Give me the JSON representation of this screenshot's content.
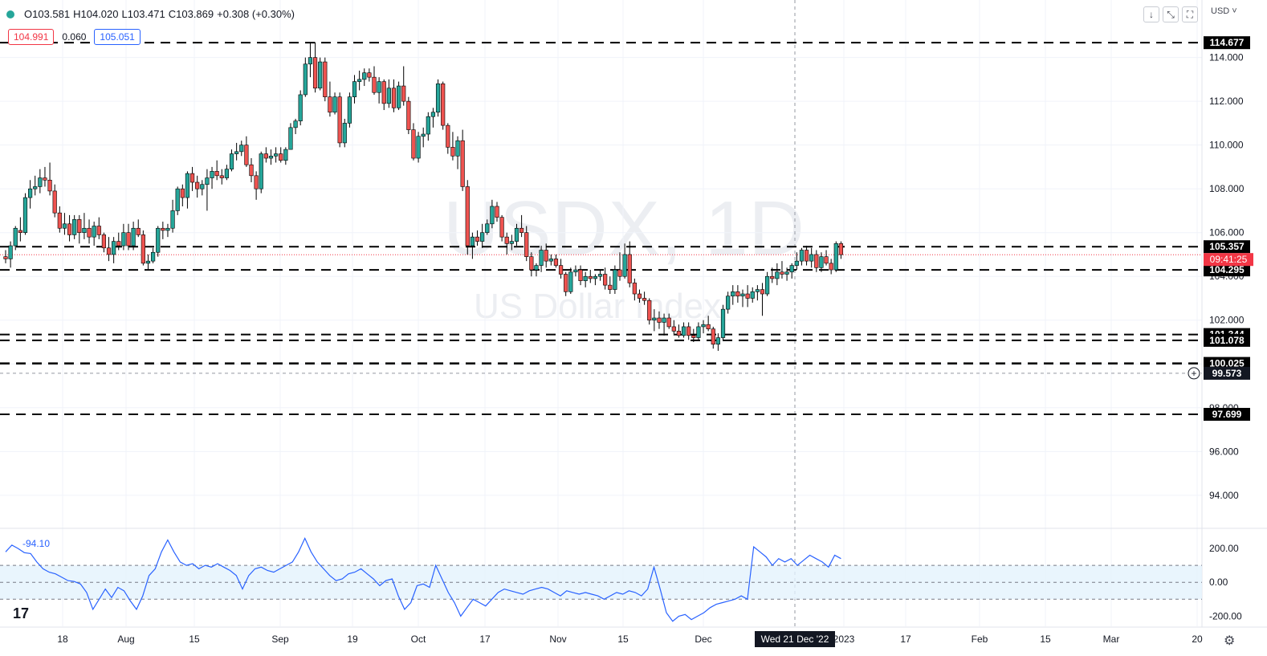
{
  "header": {
    "open": "O103.581",
    "high": "H104.020",
    "low": "L103.471",
    "close": "C103.869",
    "change": "+0.308 (+0.30%)",
    "sell_price": "104.991",
    "spread": "0.060",
    "buy_price": "105.051",
    "currency": "USD"
  },
  "watermark": {
    "symbol": "USDX, 1D",
    "name": "US Dollar Index"
  },
  "icons": [
    "arrow-down-icon",
    "collapse-icon",
    "fullscreen-icon",
    "settings-icon"
  ],
  "colors": {
    "up": "#26a69a",
    "down": "#ef5350",
    "level": "#000000",
    "cci": "#2962ff",
    "last_price": "#f23645"
  },
  "crosshair": {
    "label": "Wed 21 Dec '22"
  },
  "last_price": {
    "countdown": "09:41:25"
  },
  "chart_data": [
    {
      "type": "candlestick",
      "symbol": "USDX",
      "timeframe": "1D",
      "y_ticks": [
        94,
        96,
        98,
        100,
        102,
        104,
        106,
        108,
        110,
        112,
        114
      ],
      "y_tick_labels": [
        "94.000",
        "96.000",
        "98.000",
        "100.000",
        "102.000",
        "104.000",
        "106.000",
        "108.000",
        "110.000",
        "112.000",
        "114.000"
      ],
      "ylim": [
        92.6,
        115.6
      ],
      "x_tick_labels": [
        "18",
        "Aug",
        "15",
        "Sep",
        "19",
        "Oct",
        "17",
        "Nov",
        "15",
        "Dec",
        "2023",
        "17",
        "Feb",
        "15",
        "Mar",
        "20"
      ],
      "horizontal_levels": [
        114.677,
        105.357,
        104.295,
        101.344,
        101.078,
        100.025,
        97.699
      ],
      "horizontal_level_labels": [
        "114.677",
        "105.357",
        "104.295",
        "101.344",
        "101.078",
        "100.025",
        "97.699"
      ],
      "crosshair_price": 99.573,
      "crosshair_price_label": "99.573",
      "last_price": 104.991,
      "last_price_label": "104.991",
      "candles": [
        [
          104.9,
          105.2,
          104.6,
          104.8
        ],
        [
          104.8,
          105.6,
          104.4,
          105.4
        ],
        [
          105.4,
          106.3,
          105.2,
          106.2
        ],
        [
          106.1,
          106.7,
          105.6,
          106.0
        ],
        [
          106.0,
          107.8,
          105.9,
          107.6
        ],
        [
          107.6,
          108.4,
          107.1,
          108.0
        ],
        [
          108.0,
          108.6,
          107.7,
          108.1
        ],
        [
          108.1,
          108.9,
          107.8,
          108.5
        ],
        [
          108.5,
          109.0,
          108.1,
          108.4
        ],
        [
          108.4,
          109.2,
          107.7,
          107.9
        ],
        [
          107.9,
          108.2,
          106.7,
          106.9
        ],
        [
          106.9,
          107.2,
          106.0,
          106.2
        ],
        [
          106.2,
          106.9,
          105.9,
          106.4
        ],
        [
          106.4,
          106.8,
          105.6,
          105.9
        ],
        [
          105.9,
          106.8,
          105.7,
          106.6
        ],
        [
          106.6,
          106.8,
          105.5,
          106.0
        ],
        [
          106.0,
          106.9,
          105.7,
          106.2
        ],
        [
          106.2,
          106.6,
          105.5,
          105.8
        ],
        [
          105.8,
          106.5,
          105.4,
          106.3
        ],
        [
          106.3,
          106.7,
          105.7,
          105.9
        ],
        [
          105.9,
          106.0,
          105.1,
          105.3
        ],
        [
          105.3,
          105.8,
          104.7,
          105.0
        ],
        [
          105.0,
          105.8,
          104.6,
          105.6
        ],
        [
          105.6,
          106.0,
          105.2,
          105.4
        ],
        [
          105.4,
          106.4,
          105.2,
          106.0
        ],
        [
          106.0,
          106.4,
          105.2,
          105.4
        ],
        [
          105.4,
          106.5,
          105.2,
          106.2
        ],
        [
          106.2,
          106.6,
          105.8,
          105.9
        ],
        [
          105.9,
          106.1,
          104.5,
          104.6
        ],
        [
          104.6,
          105.0,
          104.3,
          104.7
        ],
        [
          104.7,
          105.3,
          104.6,
          105.1
        ],
        [
          105.1,
          106.3,
          104.9,
          106.2
        ],
        [
          106.2,
          106.5,
          105.7,
          106.1
        ],
        [
          106.1,
          106.4,
          105.8,
          106.2
        ],
        [
          106.2,
          107.5,
          106.0,
          107.0
        ],
        [
          107.0,
          108.1,
          106.8,
          108.0
        ],
        [
          108.0,
          108.2,
          107.2,
          107.6
        ],
        [
          107.6,
          108.8,
          107.1,
          108.7
        ],
        [
          108.7,
          109.0,
          107.9,
          108.3
        ],
        [
          108.3,
          108.6,
          107.6,
          108.0
        ],
        [
          108.0,
          108.4,
          107.7,
          108.2
        ],
        [
          108.2,
          108.9,
          107.0,
          108.5
        ],
        [
          108.5,
          109.0,
          108.0,
          108.8
        ],
        [
          108.8,
          109.3,
          108.4,
          108.6
        ],
        [
          108.6,
          108.9,
          108.2,
          108.5
        ],
        [
          108.5,
          109.1,
          108.4,
          108.9
        ],
        [
          108.9,
          109.8,
          108.8,
          109.6
        ],
        [
          109.6,
          110.1,
          109.3,
          109.7
        ],
        [
          109.7,
          110.2,
          109.5,
          110.0
        ],
        [
          110.0,
          110.4,
          109.0,
          109.1
        ],
        [
          109.1,
          109.4,
          108.3,
          108.6
        ],
        [
          108.6,
          108.8,
          107.5,
          108.0
        ],
        [
          108.0,
          109.7,
          107.8,
          109.6
        ],
        [
          109.6,
          109.9,
          109.2,
          109.4
        ],
        [
          109.4,
          109.8,
          109.1,
          109.5
        ],
        [
          109.5,
          109.9,
          109.2,
          109.6
        ],
        [
          109.6,
          109.9,
          109.2,
          109.3
        ],
        [
          109.3,
          109.9,
          109.1,
          109.8
        ],
        [
          109.8,
          111.0,
          109.8,
          110.8
        ],
        [
          110.8,
          111.2,
          110.5,
          111.1
        ],
        [
          111.1,
          112.5,
          110.9,
          112.3
        ],
        [
          112.3,
          114.0,
          112.2,
          113.7
        ],
        [
          113.7,
          114.7,
          113.1,
          114.0
        ],
        [
          114.0,
          114.7,
          112.4,
          112.6
        ],
        [
          112.6,
          114.0,
          112.5,
          113.8
        ],
        [
          113.8,
          114.0,
          112.0,
          112.2
        ],
        [
          112.2,
          112.9,
          111.3,
          111.5
        ],
        [
          111.5,
          112.4,
          111.4,
          112.2
        ],
        [
          112.2,
          112.4,
          109.9,
          110.1
        ],
        [
          110.1,
          111.2,
          109.9,
          111.0
        ],
        [
          111.0,
          112.4,
          110.8,
          112.2
        ],
        [
          112.2,
          113.2,
          111.9,
          112.9
        ],
        [
          112.9,
          113.4,
          112.5,
          113.0
        ],
        [
          113.0,
          113.5,
          112.7,
          113.3
        ],
        [
          113.3,
          113.5,
          112.9,
          113.1
        ],
        [
          113.1,
          113.6,
          112.3,
          112.4
        ],
        [
          112.4,
          113.1,
          111.9,
          112.9
        ],
        [
          112.9,
          113.0,
          111.6,
          111.9
        ],
        [
          111.9,
          113.0,
          111.7,
          112.6
        ],
        [
          112.6,
          113.0,
          111.5,
          111.7
        ],
        [
          111.7,
          112.9,
          111.6,
          112.7
        ],
        [
          112.7,
          113.6,
          111.8,
          112.0
        ],
        [
          112.0,
          112.2,
          110.5,
          110.7
        ],
        [
          110.7,
          111.0,
          109.3,
          109.4
        ],
        [
          109.4,
          110.6,
          109.2,
          110.4
        ],
        [
          110.4,
          110.8,
          109.9,
          110.5
        ],
        [
          110.5,
          111.5,
          110.2,
          111.3
        ],
        [
          111.3,
          111.7,
          110.8,
          111.5
        ],
        [
          111.5,
          113.0,
          111.3,
          112.8
        ],
        [
          112.8,
          112.9,
          110.7,
          110.9
        ],
        [
          110.9,
          111.0,
          109.6,
          109.9
        ],
        [
          109.9,
          110.6,
          109.3,
          109.5
        ],
        [
          109.5,
          110.4,
          108.9,
          110.2
        ],
        [
          110.2,
          110.7,
          107.9,
          108.1
        ],
        [
          108.1,
          108.4,
          105.0,
          105.4
        ],
        [
          105.4,
          106.0,
          104.8,
          105.8
        ],
        [
          105.8,
          106.1,
          105.4,
          105.6
        ],
        [
          105.6,
          106.4,
          105.3,
          106.0
        ],
        [
          106.0,
          106.6,
          105.9,
          106.4
        ],
        [
          106.4,
          107.5,
          106.2,
          107.2
        ],
        [
          107.2,
          107.4,
          106.5,
          106.7
        ],
        [
          106.7,
          106.8,
          105.6,
          105.8
        ],
        [
          105.8,
          106.0,
          105.0,
          105.5
        ],
        [
          105.5,
          105.9,
          105.2,
          105.6
        ],
        [
          105.6,
          106.4,
          105.4,
          106.2
        ],
        [
          106.2,
          106.8,
          105.8,
          106.0
        ],
        [
          106.0,
          106.3,
          104.7,
          104.9
        ],
        [
          104.9,
          105.1,
          104.0,
          104.3
        ],
        [
          104.3,
          104.6,
          104.0,
          104.5
        ],
        [
          104.5,
          105.4,
          104.2,
          105.2
        ],
        [
          105.2,
          105.5,
          104.4,
          104.7
        ],
        [
          104.7,
          105.0,
          104.5,
          104.8
        ],
        [
          104.8,
          105.0,
          104.4,
          104.5
        ],
        [
          104.5,
          104.8,
          103.9,
          104.1
        ],
        [
          104.1,
          104.2,
          103.1,
          103.3
        ],
        [
          103.3,
          104.4,
          103.2,
          104.2
        ],
        [
          104.2,
          104.5,
          104.0,
          104.3
        ],
        [
          104.3,
          104.5,
          103.6,
          103.8
        ],
        [
          103.8,
          104.2,
          103.5,
          104.0
        ],
        [
          104.0,
          104.3,
          103.7,
          103.9
        ],
        [
          103.9,
          104.1,
          103.6,
          104.0
        ],
        [
          104.0,
          104.3,
          103.8,
          104.1
        ],
        [
          104.1,
          104.4,
          103.4,
          103.6
        ],
        [
          103.6,
          104.0,
          103.2,
          103.4
        ],
        [
          103.4,
          104.5,
          103.2,
          104.3
        ],
        [
          104.3,
          105.1,
          103.8,
          104.0
        ],
        [
          104.0,
          105.5,
          103.9,
          105.0
        ],
        [
          105.0,
          105.6,
          103.5,
          103.7
        ],
        [
          103.7,
          103.9,
          102.9,
          103.2
        ],
        [
          103.2,
          103.4,
          102.8,
          103.0
        ],
        [
          103.0,
          103.3,
          102.7,
          102.9
        ],
        [
          102.9,
          103.0,
          101.8,
          102.0
        ],
        [
          102.0,
          102.5,
          101.5,
          102.1
        ],
        [
          102.1,
          102.4,
          101.6,
          101.9
        ],
        [
          101.9,
          102.3,
          101.3,
          102.1
        ],
        [
          102.1,
          102.3,
          101.6,
          101.7
        ],
        [
          101.7,
          102.0,
          101.3,
          101.5
        ],
        [
          101.5,
          101.8,
          101.2,
          101.3
        ],
        [
          101.3,
          101.9,
          101.2,
          101.7
        ],
        [
          101.7,
          101.9,
          101.1,
          101.3
        ],
        [
          101.3,
          101.6,
          101.0,
          101.2
        ],
        [
          101.2,
          101.9,
          101.1,
          101.7
        ],
        [
          101.7,
          102.0,
          101.4,
          101.8
        ],
        [
          101.8,
          102.2,
          101.5,
          101.6
        ],
        [
          101.6,
          101.7,
          100.7,
          100.9
        ],
        [
          100.9,
          101.4,
          100.6,
          101.2
        ],
        [
          101.2,
          102.7,
          101.1,
          102.5
        ],
        [
          102.5,
          103.3,
          102.3,
          103.1
        ],
        [
          103.1,
          103.6,
          102.7,
          103.3
        ],
        [
          103.3,
          103.6,
          102.8,
          103.1
        ],
        [
          103.1,
          103.4,
          102.6,
          103.2
        ],
        [
          103.2,
          103.6,
          102.6,
          103.0
        ],
        [
          103.0,
          103.5,
          102.8,
          103.3
        ],
        [
          103.3,
          103.6,
          102.9,
          103.4
        ],
        [
          103.4,
          103.7,
          102.2,
          103.2
        ],
        [
          103.2,
          104.2,
          103.1,
          104.0
        ],
        [
          104.0,
          104.4,
          103.7,
          103.9
        ],
        [
          103.9,
          104.6,
          103.6,
          104.2
        ],
        [
          104.2,
          104.7,
          103.9,
          104.1
        ],
        [
          104.1,
          104.4,
          103.8,
          104.2
        ],
        [
          104.2,
          104.6,
          103.9,
          104.5
        ],
        [
          104.5,
          105.1,
          104.3,
          104.7
        ],
        [
          104.7,
          105.3,
          104.5,
          105.2
        ],
        [
          105.2,
          105.4,
          104.5,
          104.7
        ],
        [
          104.7,
          105.3,
          104.4,
          105.0
        ],
        [
          105.0,
          105.2,
          104.2,
          104.4
        ],
        [
          104.4,
          105.1,
          104.2,
          104.9
        ],
        [
          104.9,
          105.2,
          104.5,
          104.6
        ],
        [
          104.6,
          104.8,
          104.1,
          104.3
        ],
        [
          104.3,
          105.6,
          104.2,
          105.5
        ],
        [
          105.5,
          105.6,
          104.8,
          104.991
        ]
      ],
      "candle_step_px": 6.12,
      "cci_series": {
        "ylim": [
          -260,
          300
        ],
        "y_ticks": [
          -200,
          0,
          200
        ],
        "y_tick_labels": [
          "-200.00",
          "0.00",
          "200.00"
        ],
        "band": [
          -100,
          100
        ],
        "label": "-94.10",
        "values": [
          180,
          220,
          200,
          175,
          170,
          120,
          80,
          60,
          50,
          30,
          10,
          5,
          -10,
          -60,
          -160,
          -100,
          -40,
          -90,
          -30,
          -50,
          -110,
          -160,
          -80,
          40,
          80,
          180,
          250,
          180,
          120,
          100,
          110,
          80,
          100,
          90,
          110,
          90,
          70,
          40,
          -40,
          40,
          80,
          90,
          70,
          60,
          80,
          100,
          120,
          180,
          260,
          180,
          120,
          80,
          40,
          10,
          20,
          50,
          60,
          80,
          50,
          20,
          -20,
          10,
          20,
          -80,
          -160,
          -120,
          -20,
          -10,
          -30,
          100,
          20,
          -60,
          -120,
          -200,
          -150,
          -100,
          -120,
          -140,
          -100,
          -60,
          -40,
          -50,
          -60,
          -70,
          -50,
          -40,
          -30,
          -40,
          -60,
          -80,
          -50,
          -60,
          -70,
          -60,
          -70,
          -80,
          -100,
          -80,
          -60,
          -70,
          -50,
          -60,
          -80,
          -40,
          90,
          -40,
          -180,
          -230,
          -200,
          -190,
          -220,
          -200,
          -180,
          -150,
          -130,
          -120,
          -110,
          -100,
          -80,
          -100,
          210,
          180,
          150,
          100,
          140,
          120,
          140,
          100,
          130,
          160,
          140,
          120,
          90,
          160,
          140
        ]
      }
    }
  ]
}
